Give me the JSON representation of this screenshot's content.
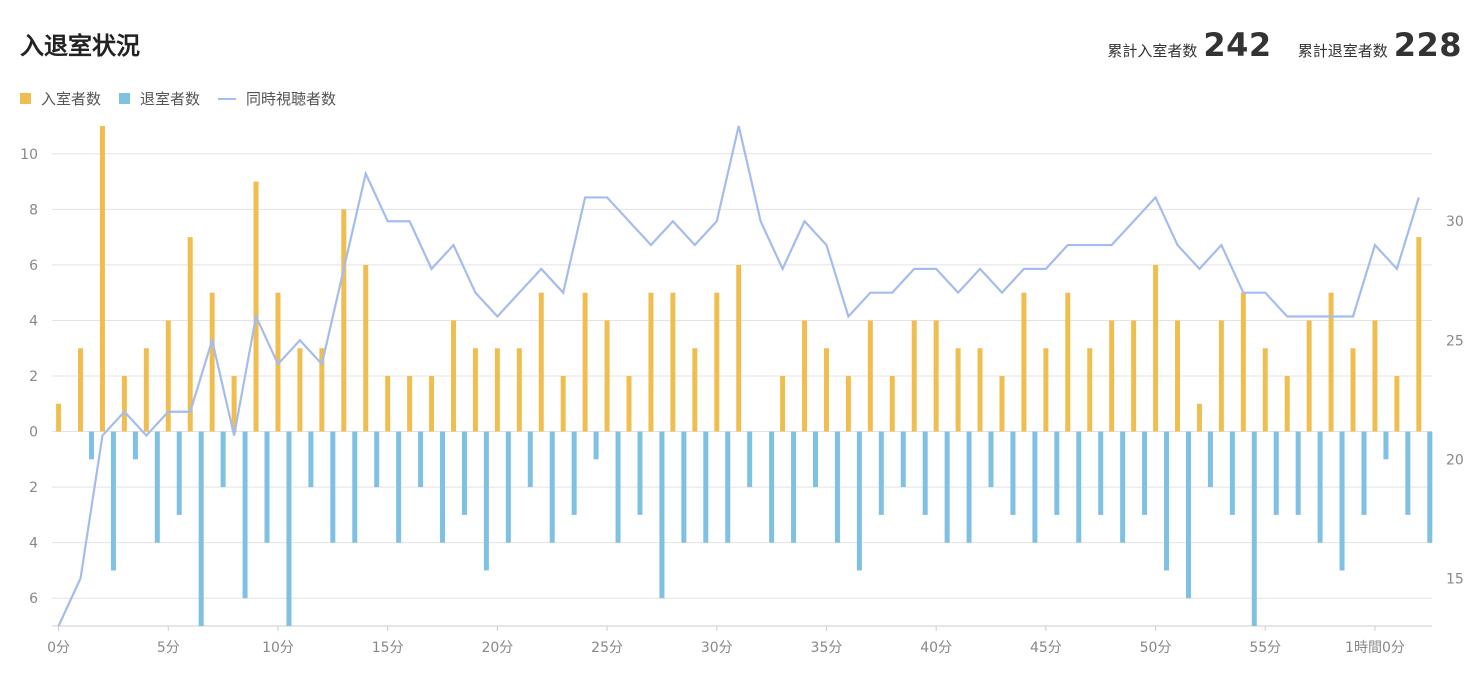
{
  "header": {
    "title": "入退室状況",
    "total_entered_label": "累計入室者数",
    "total_entered_value": "242",
    "total_exited_label": "累計退室者数",
    "total_exited_value": "228"
  },
  "colors": {
    "entered": "#F0BE50",
    "exited": "#7EC1E3",
    "concurrent": "#A5BCEF",
    "grid": "#E3E3E3",
    "tick": "#888888"
  },
  "chart_data": {
    "type": "bar",
    "x_unit": "minutes",
    "x": [
      0,
      1,
      2,
      3,
      4,
      5,
      6,
      7,
      8,
      9,
      10,
      11,
      12,
      13,
      14,
      15,
      16,
      17,
      18,
      19,
      20,
      21,
      22,
      23,
      24,
      25,
      26,
      27,
      28,
      29,
      30,
      31,
      32,
      33,
      34,
      35,
      36,
      37,
      38,
      39,
      40,
      41,
      42,
      43,
      44,
      45,
      46,
      47,
      48,
      49,
      50,
      51,
      52,
      53,
      54,
      55,
      56,
      57,
      58,
      59,
      60,
      61,
      62
    ],
    "xticks": [
      {
        "value": 0,
        "label": "0分"
      },
      {
        "value": 5,
        "label": "5分"
      },
      {
        "value": 10,
        "label": "10分"
      },
      {
        "value": 15,
        "label": "15分"
      },
      {
        "value": 20,
        "label": "20分"
      },
      {
        "value": 25,
        "label": "25分"
      },
      {
        "value": 30,
        "label": "30分"
      },
      {
        "value": 35,
        "label": "35分"
      },
      {
        "value": 40,
        "label": "40分"
      },
      {
        "value": 45,
        "label": "45分"
      },
      {
        "value": 50,
        "label": "50分"
      },
      {
        "value": 55,
        "label": "55分"
      },
      {
        "value": 60,
        "label": "1時間0分"
      }
    ],
    "left_axis": {
      "ylim": [
        -7,
        11
      ],
      "ticks": [
        {
          "value": 10,
          "label": "10"
        },
        {
          "value": 8,
          "label": "8"
        },
        {
          "value": 6,
          "label": "6"
        },
        {
          "value": 4,
          "label": "4"
        },
        {
          "value": 2,
          "label": "2"
        },
        {
          "value": 0,
          "label": "0"
        },
        {
          "value": -2,
          "label": "2"
        },
        {
          "value": -4,
          "label": "4"
        },
        {
          "value": -6,
          "label": "6"
        }
      ]
    },
    "right_axis": {
      "ylim": [
        13,
        34
      ],
      "ticks": [
        {
          "value": 15,
          "label": "15"
        },
        {
          "value": 20,
          "label": "20"
        },
        {
          "value": 25,
          "label": "25"
        },
        {
          "value": 30,
          "label": "30"
        }
      ]
    },
    "grid": true,
    "legend_position": "top-left",
    "series": [
      {
        "name": "入室者数",
        "type": "bar",
        "axis": "left",
        "values": [
          1,
          3,
          11,
          2,
          3,
          4,
          7,
          5,
          2,
          9,
          5,
          3,
          3,
          8,
          6,
          2,
          2,
          2,
          4,
          3,
          3,
          3,
          5,
          2,
          5,
          4,
          2,
          5,
          5,
          3,
          5,
          6,
          0,
          2,
          4,
          3,
          2,
          4,
          2,
          4,
          4,
          3,
          3,
          2,
          5,
          3,
          5,
          3,
          4,
          4,
          6,
          4,
          1,
          4,
          5,
          3,
          2,
          4,
          5,
          3,
          4,
          2,
          7
        ]
      },
      {
        "name": "退室者数",
        "type": "bar",
        "axis": "left",
        "values": [
          0,
          1,
          5,
          1,
          4,
          3,
          7,
          2,
          6,
          4,
          7,
          2,
          4,
          4,
          2,
          4,
          2,
          4,
          3,
          5,
          4,
          2,
          4,
          3,
          1,
          4,
          3,
          6,
          4,
          4,
          4,
          2,
          4,
          4,
          2,
          4,
          5,
          3,
          2,
          3,
          4,
          4,
          2,
          3,
          4,
          3,
          4,
          3,
          4,
          3,
          5,
          6,
          2,
          3,
          7,
          3,
          3,
          4,
          5,
          3,
          1,
          3,
          4
        ]
      },
      {
        "name": "同時視聴者数",
        "type": "line",
        "axis": "right",
        "values": [
          13,
          15,
          21,
          22,
          21,
          22,
          22,
          25,
          21,
          26,
          24,
          25,
          24,
          28,
          32,
          30,
          30,
          28,
          29,
          27,
          26,
          27,
          28,
          27,
          31,
          31,
          30,
          29,
          30,
          29,
          30,
          34,
          30,
          28,
          30,
          29,
          26,
          27,
          27,
          28,
          28,
          27,
          28,
          27,
          28,
          28,
          29,
          29,
          29,
          30,
          31,
          29,
          28,
          29,
          27,
          27,
          26,
          26,
          26,
          26,
          29,
          28,
          31
        ]
      }
    ]
  }
}
